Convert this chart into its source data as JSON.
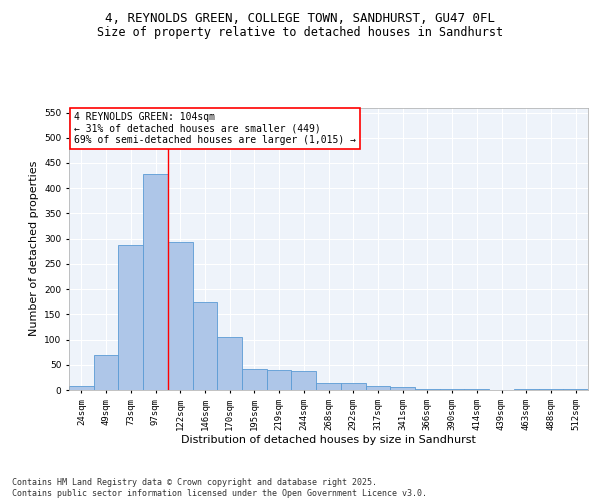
{
  "title_line1": "4, REYNOLDS GREEN, COLLEGE TOWN, SANDHURST, GU47 0FL",
  "title_line2": "Size of property relative to detached houses in Sandhurst",
  "xlabel": "Distribution of detached houses by size in Sandhurst",
  "ylabel": "Number of detached properties",
  "categories": [
    "24sqm",
    "49sqm",
    "73sqm",
    "97sqm",
    "122sqm",
    "146sqm",
    "170sqm",
    "195sqm",
    "219sqm",
    "244sqm",
    "268sqm",
    "292sqm",
    "317sqm",
    "341sqm",
    "366sqm",
    "390sqm",
    "414sqm",
    "439sqm",
    "463sqm",
    "488sqm",
    "512sqm"
  ],
  "values": [
    7,
    70,
    287,
    428,
    293,
    175,
    105,
    42,
    40,
    38,
    14,
    14,
    8,
    5,
    2,
    2,
    2,
    0,
    1,
    1,
    1
  ],
  "bar_color": "#aec6e8",
  "bar_edge_color": "#5b9bd5",
  "background_color": "#eef3fa",
  "grid_color": "#ffffff",
  "vline_x": 3.5,
  "vline_color": "red",
  "annotation_text": "4 REYNOLDS GREEN: 104sqm\n← 31% of detached houses are smaller (449)\n69% of semi-detached houses are larger (1,015) →",
  "annotation_box_color": "white",
  "annotation_box_edge_color": "red",
  "ylim": [
    0,
    560
  ],
  "yticks": [
    0,
    50,
    100,
    150,
    200,
    250,
    300,
    350,
    400,
    450,
    500,
    550
  ],
  "footer_text": "Contains HM Land Registry data © Crown copyright and database right 2025.\nContains public sector information licensed under the Open Government Licence v3.0.",
  "title_fontsize": 9,
  "subtitle_fontsize": 8.5,
  "axis_label_fontsize": 8,
  "tick_fontsize": 6.5,
  "annotation_fontsize": 7,
  "footer_fontsize": 6
}
